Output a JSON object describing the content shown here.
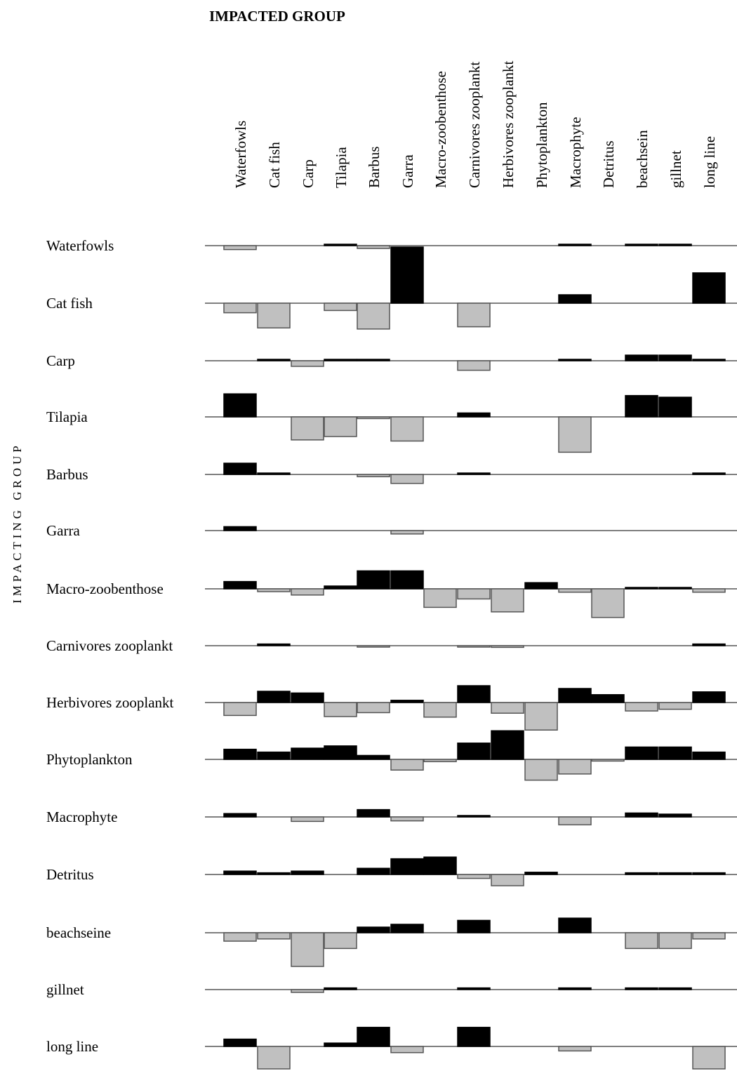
{
  "chart_data": {
    "type": "bar",
    "subtitle": "",
    "x_axis_title": "IMPACTED GROUP",
    "y_axis_title": "IMPACTING GROUP",
    "legend": null,
    "grid": false,
    "value_unit_note": "Mixed trophic impact (relative magnitude); positive = black bars, negative = grey bars",
    "impacted_groups": [
      "Waterfowls",
      "Cat fish",
      "Carp",
      "Tilapia",
      "Barbus",
      "Garra",
      "Macro-zoobenthose",
      "Carnivores zooplankt",
      "Herbivores zooplankt",
      "Phytoplankton",
      "Macrophyte",
      "Detritus",
      "beachsein",
      "gillnet",
      "long line"
    ],
    "impacting_groups": [
      "Waterfowls",
      "Cat fish",
      "Carp",
      "Tilapia",
      "Barbus",
      "Garra",
      "Macro-zoobenthose",
      "Carnivores zooplankt",
      "Herbivores zooplankt",
      "Phytoplankton",
      "Macrophyte",
      "Detritus",
      "beachseine",
      "gillnet",
      "long line"
    ],
    "positive_color": "#000000",
    "negative_color": "#c0c0c0",
    "baseline_color": "#555555",
    "ylim": [
      -1,
      1
    ],
    "series": [
      {
        "values": [
          -0.07,
          0,
          0,
          0.02,
          -0.05,
          0,
          0,
          0,
          0,
          0,
          0.02,
          0,
          0.02,
          0.02,
          0
        ]
      },
      {
        "values": [
          -0.17,
          -0.44,
          0,
          -0.13,
          -0.46,
          1.0,
          0,
          -0.42,
          0,
          0,
          0.15,
          0,
          0,
          0,
          0.54
        ]
      },
      {
        "values": [
          0,
          0.02,
          -0.1,
          0.02,
          0.02,
          0,
          0,
          -0.17,
          0,
          0,
          0.02,
          0,
          0.1,
          0.1,
          0.02
        ]
      },
      {
        "values": [
          0.41,
          0,
          -0.41,
          -0.35,
          -0.03,
          -0.43,
          0,
          0.07,
          0,
          0,
          -0.63,
          0,
          0.38,
          0.35,
          0
        ]
      },
      {
        "values": [
          0.2,
          0.02,
          0,
          0,
          -0.04,
          -0.16,
          0,
          0.02,
          0,
          0,
          0,
          0,
          0,
          0,
          0.02
        ]
      },
      {
        "values": [
          0.07,
          0,
          0,
          0,
          0,
          -0.06,
          0,
          0,
          0,
          0,
          0,
          0,
          0,
          0,
          0
        ]
      },
      {
        "values": [
          0.13,
          -0.05,
          -0.11,
          0.05,
          0.32,
          0.32,
          -0.33,
          -0.18,
          -0.41,
          0.11,
          -0.06,
          -0.51,
          0.02,
          0.02,
          -0.06
        ]
      },
      {
        "values": [
          0,
          0.03,
          0,
          0,
          -0.02,
          0,
          0,
          -0.02,
          -0.03,
          0,
          0,
          0,
          0,
          0,
          0.03
        ]
      },
      {
        "values": [
          -0.23,
          0.2,
          0.17,
          -0.25,
          -0.18,
          0.04,
          -0.26,
          0.3,
          -0.19,
          -0.49,
          0.25,
          0.14,
          -0.15,
          -0.12,
          0.19
        ]
      },
      {
        "values": [
          0.18,
          0.13,
          0.2,
          0.24,
          0.07,
          -0.19,
          -0.04,
          0.29,
          0.51,
          -0.37,
          -0.26,
          -0.03,
          0.22,
          0.22,
          0.13
        ]
      },
      {
        "values": [
          0.06,
          0,
          -0.08,
          0,
          0.13,
          -0.07,
          0,
          0.02,
          0,
          0,
          -0.14,
          0,
          0.07,
          0.05,
          0
        ]
      },
      {
        "values": [
          0.06,
          0.03,
          0.06,
          0,
          0.11,
          0.28,
          0.31,
          -0.07,
          -0.2,
          0.04,
          0,
          0,
          0.03,
          0.03,
          0.03
        ]
      },
      {
        "values": [
          -0.15,
          -0.11,
          -0.6,
          -0.28,
          0.1,
          0.15,
          0,
          0.22,
          0,
          0,
          0.26,
          0,
          -0.28,
          -0.28,
          -0.11
        ]
      },
      {
        "values": [
          0,
          0,
          -0.05,
          0.03,
          0,
          0,
          0,
          0.03,
          0,
          0,
          0.03,
          0,
          0.03,
          0.03,
          0
        ]
      },
      {
        "values": [
          0.13,
          -0.4,
          0,
          0.06,
          0.34,
          -0.11,
          0,
          0.34,
          0,
          0,
          -0.08,
          0,
          0,
          0,
          -0.4
        ]
      }
    ]
  }
}
